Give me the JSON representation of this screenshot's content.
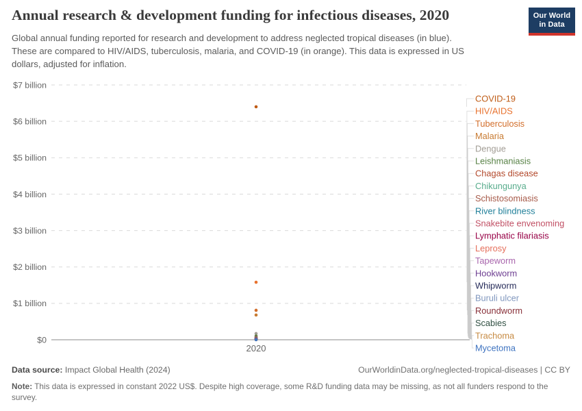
{
  "header": {
    "title": "Annual research & development funding for infectious diseases, 2020",
    "subtitle_lines": [
      "Global annual funding reported for research and development to address neglected tropical diseases (in blue).",
      "These are compared to HIV/AIDS, tuberculosis, malaria, and COVID-19 (in orange). This data is expressed in US",
      "dollars, adjusted for inflation."
    ]
  },
  "logo": {
    "line1": "Our World",
    "line2": "in Data",
    "bg_color": "#1D3D63",
    "bar_color": "#D0342C"
  },
  "footer": {
    "datasource_label": "Data source:",
    "datasource_value": " Impact Global Health (2024)",
    "url_text": "OurWorldinData.org/neglected-tropical-diseases | CC BY",
    "note_label": "Note:",
    "note_text": " This data is expressed in constant 2022 US$. Despite high coverage, some R&D funding data may be missing, as not all funders respond to the survey."
  },
  "chart_data": {
    "type": "scatter",
    "x_tick_label": "2020",
    "ylim": [
      0,
      7
    ],
    "grid": true,
    "legend_position": "right",
    "y_ticks": [
      {
        "v": 0,
        "label": "$0"
      },
      {
        "v": 1,
        "label": "$1 billion"
      },
      {
        "v": 2,
        "label": "$2 billion"
      },
      {
        "v": 3,
        "label": "$3 billion"
      },
      {
        "v": 4,
        "label": "$4 billion"
      },
      {
        "v": 5,
        "label": "$5 billion"
      },
      {
        "v": 6,
        "label": "$6 billion"
      },
      {
        "v": 7,
        "label": "$7 billion"
      }
    ],
    "series": [
      {
        "name": "COVID-19",
        "color": "#BF5B15",
        "value_billion_usd": 6.4
      },
      {
        "name": "HIV/AIDS",
        "color": "#E8722E",
        "value_billion_usd": 1.58
      },
      {
        "name": "Tuberculosis",
        "color": "#D26E2B",
        "value_billion_usd": 0.81
      },
      {
        "name": "Malaria",
        "color": "#C87B32",
        "value_billion_usd": 0.68
      },
      {
        "name": "Dengue",
        "color": "#A19C94",
        "value_billion_usd": 0.17
      },
      {
        "name": "Leishmaniasis",
        "color": "#578145",
        "value_billion_usd": 0.1
      },
      {
        "name": "Chagas disease",
        "color": "#B34A2D",
        "value_billion_usd": 0.065
      },
      {
        "name": "Chikungunya",
        "color": "#58AC8C",
        "value_billion_usd": 0.05
      },
      {
        "name": "Schistosomiasis",
        "color": "#A65A49",
        "value_billion_usd": 0.042
      },
      {
        "name": "River blindness",
        "color": "#1F7F99",
        "value_billion_usd": 0.036
      },
      {
        "name": "Snakebite envenoming",
        "color": "#C15065",
        "value_billion_usd": 0.03
      },
      {
        "name": "Lymphatic filariasis",
        "color": "#970046",
        "value_billion_usd": 0.026
      },
      {
        "name": "Leprosy",
        "color": "#E56E5A",
        "value_billion_usd": 0.021
      },
      {
        "name": "Tapeworm",
        "color": "#A966AD",
        "value_billion_usd": 0.017
      },
      {
        "name": "Hookworm",
        "color": "#6D3E91",
        "value_billion_usd": 0.014
      },
      {
        "name": "Whipworm",
        "color": "#262B59",
        "value_billion_usd": 0.011
      },
      {
        "name": "Buruli ulcer",
        "color": "#8097BE",
        "value_billion_usd": 0.009
      },
      {
        "name": "Roundworm",
        "color": "#883039",
        "value_billion_usd": 0.007
      },
      {
        "name": "Scabies",
        "color": "#315043",
        "value_billion_usd": 0.005
      },
      {
        "name": "Trachoma",
        "color": "#C68A42",
        "value_billion_usd": 0.004
      },
      {
        "name": "Mycetoma",
        "color": "#3E73C0",
        "value_billion_usd": 0.002
      }
    ]
  }
}
